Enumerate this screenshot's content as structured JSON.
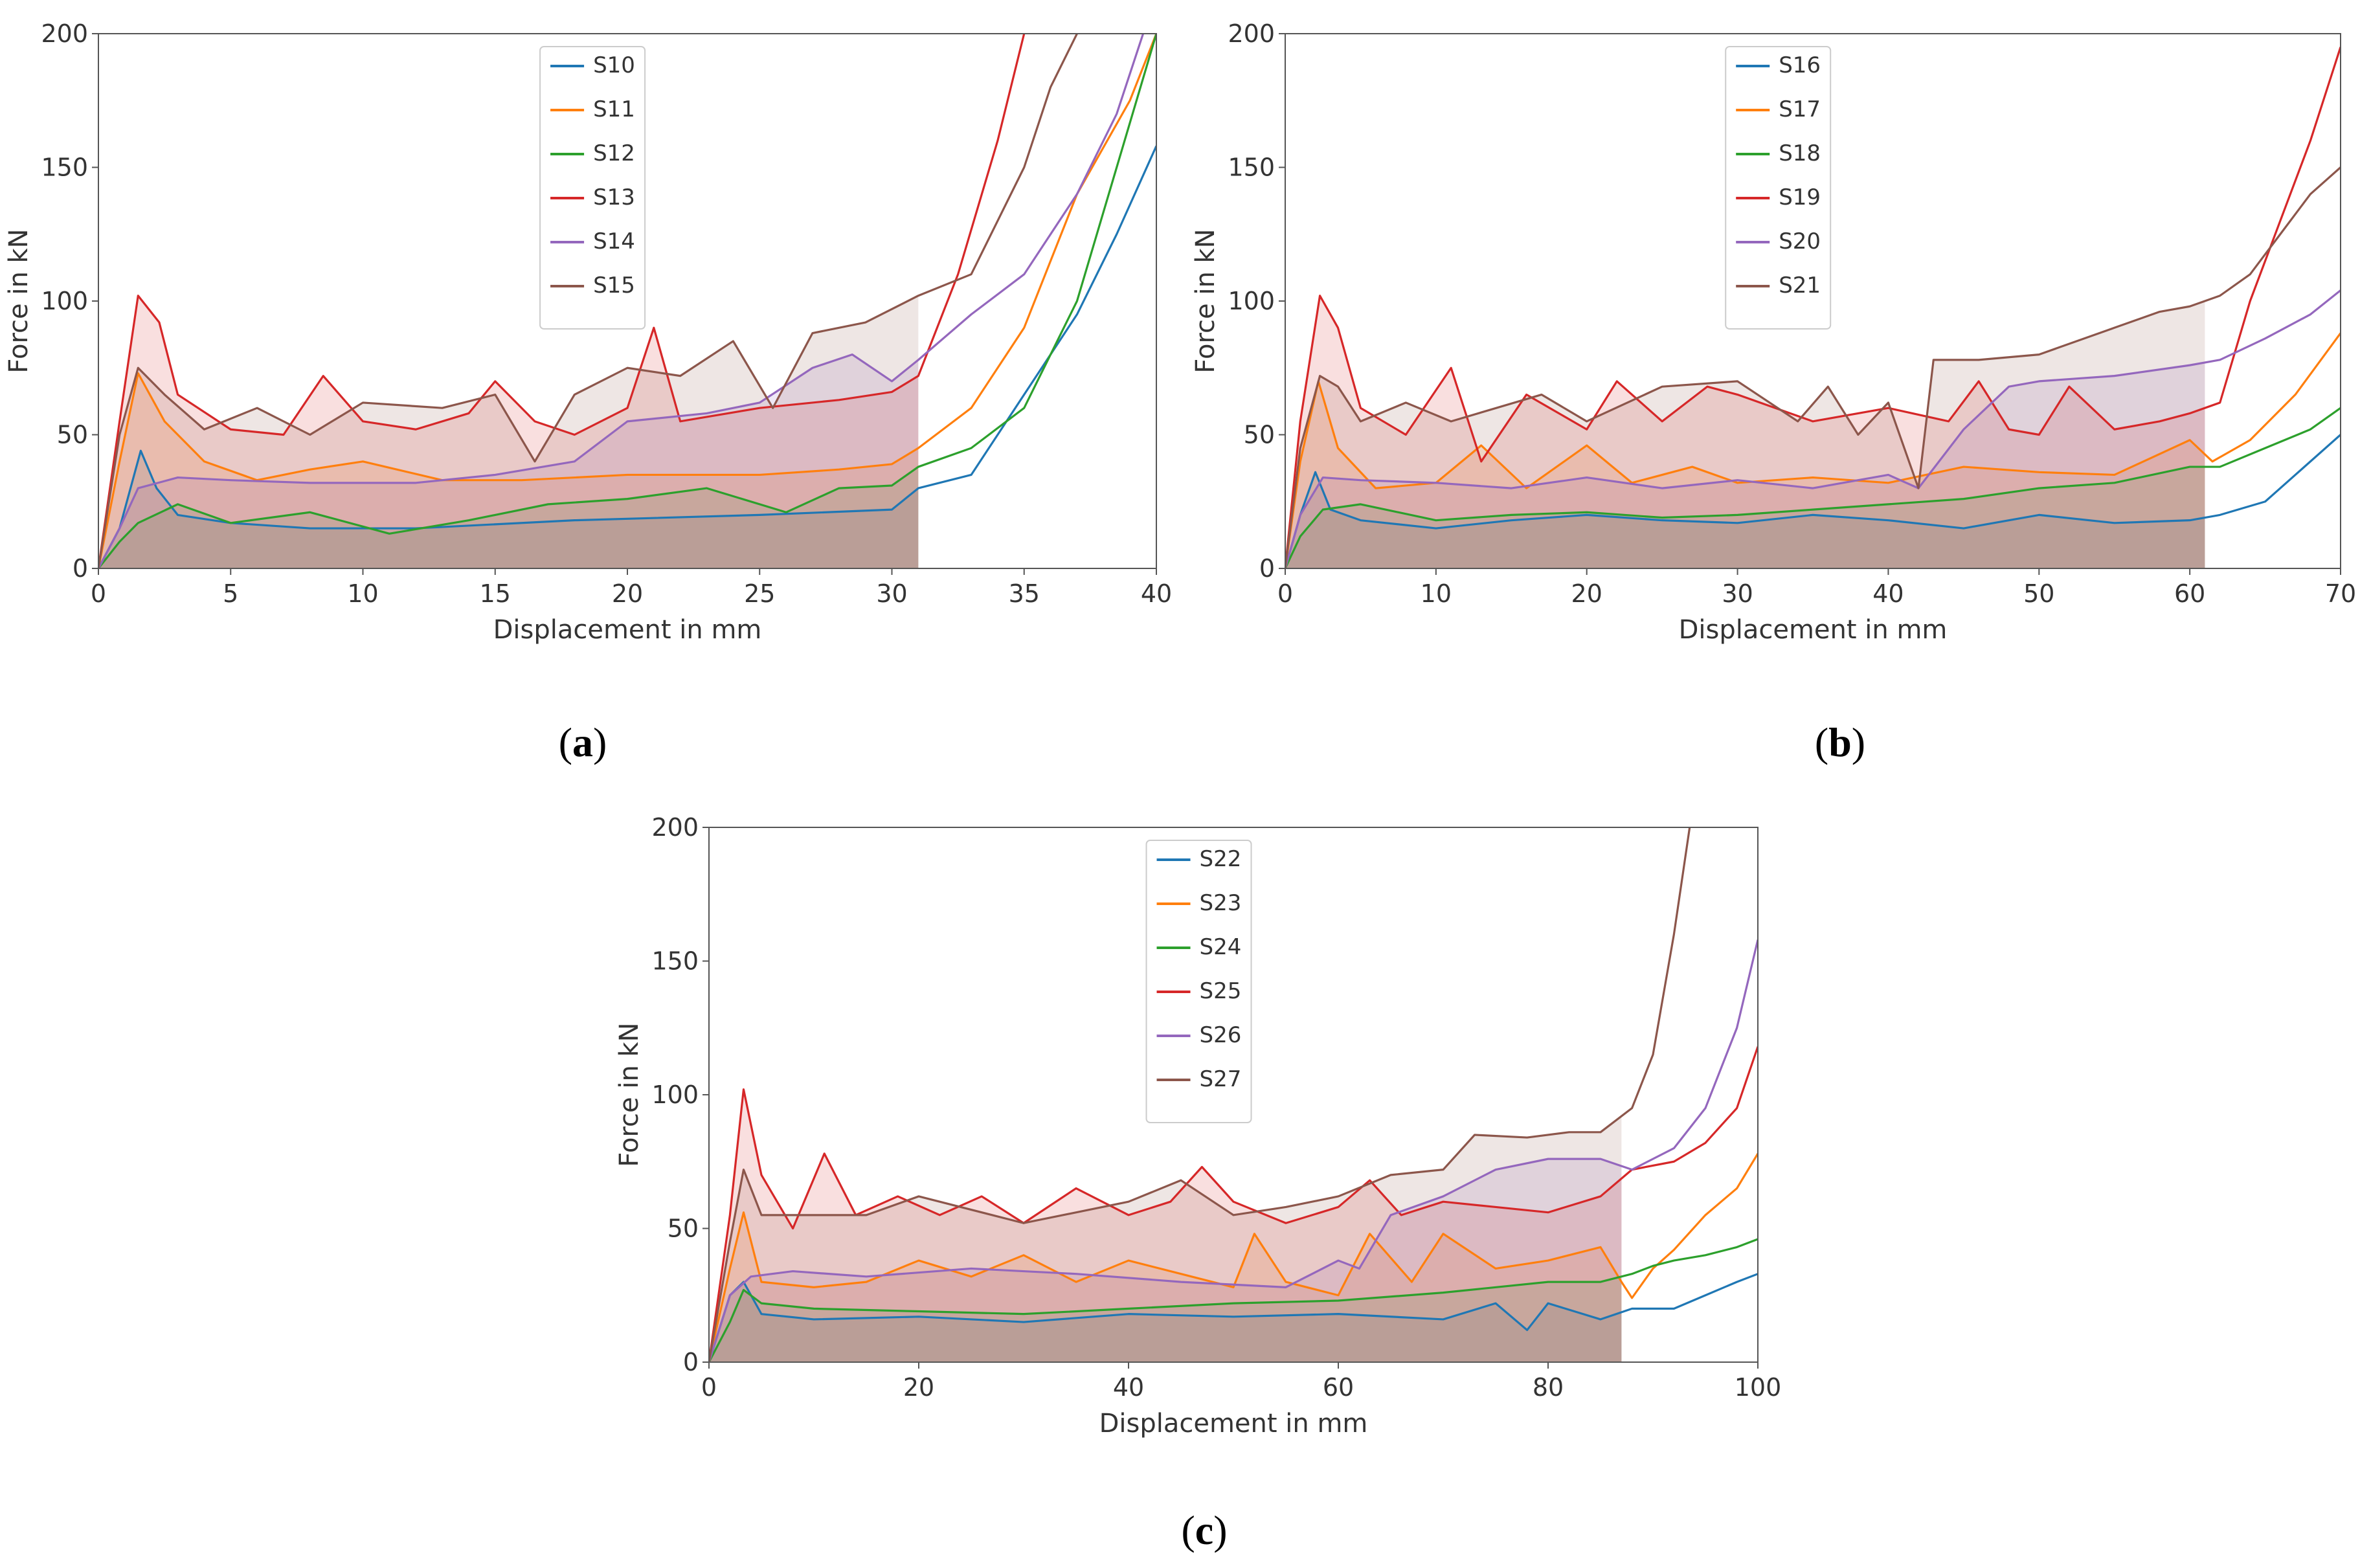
{
  "chart_data": [
    {
      "id": "a",
      "caption": "a",
      "type": "line",
      "xlabel": "Displacement in mm",
      "ylabel": "Force in kN",
      "xlim": [
        0,
        40
      ],
      "ylim": [
        0,
        200
      ],
      "xticks": [
        0,
        5,
        10,
        15,
        20,
        25,
        30,
        35,
        40
      ],
      "yticks": [
        0,
        50,
        100,
        150,
        200
      ],
      "shade_end": 31,
      "legend_position": "top-center",
      "series": [
        {
          "name": "S10",
          "color": "#1f77b4",
          "x": [
            0,
            0.8,
            1.6,
            2.2,
            3,
            5,
            8,
            12,
            18,
            25,
            30,
            31,
            33,
            35,
            37,
            38.5,
            40
          ],
          "y": [
            0,
            15,
            44,
            30,
            20,
            17,
            15,
            15,
            18,
            20,
            22,
            30,
            35,
            65,
            95,
            125,
            158
          ]
        },
        {
          "name": "S11",
          "color": "#ff7f0e",
          "x": [
            0,
            0.8,
            1.5,
            2.5,
            4,
            6,
            8,
            10,
            13,
            16,
            20,
            25,
            28,
            30,
            31,
            33,
            35,
            37,
            39,
            40
          ],
          "y": [
            0,
            40,
            73,
            55,
            40,
            33,
            37,
            40,
            33,
            33,
            35,
            35,
            37,
            39,
            45,
            60,
            90,
            140,
            175,
            200
          ]
        },
        {
          "name": "S12",
          "color": "#2ca02c",
          "x": [
            0,
            0.8,
            1.5,
            3,
            5,
            8,
            11,
            14,
            17,
            20,
            23,
            26,
            28,
            30,
            31,
            33,
            35,
            37,
            38.5,
            40
          ],
          "y": [
            0,
            10,
            17,
            24,
            17,
            21,
            13,
            18,
            24,
            26,
            30,
            21,
            30,
            31,
            38,
            45,
            60,
            100,
            150,
            200
          ]
        },
        {
          "name": "S13",
          "color": "#d62728",
          "x": [
            0,
            0.8,
            1.5,
            2.3,
            3,
            5,
            7,
            8.5,
            10,
            12,
            14,
            15,
            16.5,
            18,
            20,
            21,
            22,
            25,
            28,
            30,
            31,
            32.5,
            34,
            35
          ],
          "y": [
            0,
            55,
            102,
            92,
            65,
            52,
            50,
            72,
            55,
            52,
            58,
            70,
            55,
            50,
            60,
            90,
            55,
            60,
            63,
            66,
            72,
            110,
            160,
            200
          ]
        },
        {
          "name": "S14",
          "color": "#9467bd",
          "x": [
            0,
            0.8,
            1.5,
            3,
            5,
            8,
            12,
            15,
            18,
            20,
            23,
            25,
            27,
            28.5,
            30,
            31,
            33,
            35,
            37,
            38.5,
            39.5
          ],
          "y": [
            0,
            15,
            30,
            34,
            33,
            32,
            32,
            35,
            40,
            55,
            58,
            62,
            75,
            80,
            70,
            78,
            95,
            110,
            140,
            170,
            200
          ]
        },
        {
          "name": "S15",
          "color": "#8c564b",
          "x": [
            0,
            0.8,
            1.5,
            2.5,
            4,
            6,
            8,
            10,
            13,
            15,
            16.5,
            18,
            20,
            22,
            24,
            25.5,
            27,
            29,
            31,
            33,
            34,
            35,
            36,
            37
          ],
          "y": [
            0,
            50,
            75,
            65,
            52,
            60,
            50,
            62,
            60,
            65,
            40,
            65,
            75,
            72,
            85,
            60,
            88,
            92,
            102,
            110,
            130,
            150,
            180,
            200
          ]
        }
      ]
    },
    {
      "id": "b",
      "caption": "b",
      "type": "line",
      "xlabel": "Displacement in mm",
      "ylabel": "Force in kN",
      "xlim": [
        0,
        70
      ],
      "ylim": [
        0,
        200
      ],
      "xticks": [
        0,
        10,
        20,
        30,
        40,
        50,
        60,
        70
      ],
      "yticks": [
        0,
        50,
        100,
        150,
        200
      ],
      "shade_end": 61,
      "legend_position": "top-center",
      "series": [
        {
          "name": "S16",
          "color": "#1f77b4",
          "x": [
            0,
            1,
            2,
            3,
            5,
            10,
            15,
            20,
            25,
            30,
            35,
            40,
            45,
            50,
            55,
            60,
            62,
            65,
            67,
            70
          ],
          "y": [
            0,
            20,
            36,
            22,
            18,
            15,
            18,
            20,
            18,
            17,
            20,
            18,
            15,
            20,
            17,
            18,
            20,
            25,
            35,
            50
          ]
        },
        {
          "name": "S17",
          "color": "#ff7f0e",
          "x": [
            0,
            1,
            2.2,
            3.5,
            6,
            10,
            13,
            16,
            20,
            23,
            27,
            30,
            35,
            40,
            45,
            50,
            55,
            60,
            61.5,
            64,
            67,
            70
          ],
          "y": [
            0,
            40,
            70,
            45,
            30,
            32,
            46,
            30,
            46,
            32,
            38,
            32,
            34,
            32,
            38,
            36,
            35,
            48,
            40,
            48,
            65,
            88
          ]
        },
        {
          "name": "S18",
          "color": "#2ca02c",
          "x": [
            0,
            1,
            2.5,
            5,
            10,
            15,
            20,
            25,
            30,
            35,
            40,
            45,
            50,
            55,
            60,
            62,
            65,
            68,
            70
          ],
          "y": [
            0,
            12,
            22,
            24,
            18,
            20,
            21,
            19,
            20,
            22,
            24,
            26,
            30,
            32,
            38,
            38,
            45,
            52,
            60
          ]
        },
        {
          "name": "S19",
          "color": "#d62728",
          "x": [
            0,
            1,
            2.3,
            3.5,
            5,
            8,
            11,
            13,
            16,
            20,
            22,
            25,
            28,
            30,
            35,
            40,
            44,
            46,
            48,
            50,
            52,
            55,
            58,
            60,
            62,
            64,
            66,
            68,
            70
          ],
          "y": [
            0,
            55,
            102,
            90,
            60,
            50,
            75,
            40,
            65,
            52,
            70,
            55,
            68,
            65,
            55,
            60,
            55,
            70,
            52,
            50,
            68,
            52,
            55,
            58,
            62,
            100,
            130,
            160,
            195
          ]
        },
        {
          "name": "S20",
          "color": "#9467bd",
          "x": [
            0,
            1,
            2.5,
            5,
            10,
            15,
            20,
            25,
            30,
            35,
            40,
            42,
            45,
            48,
            50,
            55,
            60,
            62,
            65,
            68,
            70
          ],
          "y": [
            0,
            20,
            34,
            33,
            32,
            30,
            34,
            30,
            33,
            30,
            35,
            30,
            52,
            68,
            70,
            72,
            76,
            78,
            86,
            95,
            104
          ]
        },
        {
          "name": "S21",
          "color": "#8c564b",
          "x": [
            0,
            1,
            2.3,
            3.5,
            5,
            8,
            11,
            14,
            17,
            20,
            25,
            30,
            34,
            36,
            38,
            40,
            42,
            43,
            46,
            50,
            55,
            58,
            60,
            62,
            64,
            66,
            68,
            70
          ],
          "y": [
            0,
            45,
            72,
            68,
            55,
            62,
            55,
            60,
            65,
            55,
            68,
            70,
            55,
            68,
            50,
            62,
            30,
            78,
            78,
            80,
            90,
            96,
            98,
            102,
            110,
            125,
            140,
            150
          ]
        }
      ]
    },
    {
      "id": "c",
      "caption": "c",
      "type": "line",
      "xlabel": "Displacement in mm",
      "ylabel": "Force in kN",
      "xlim": [
        0,
        100
      ],
      "ylim": [
        0,
        200
      ],
      "xticks": [
        0,
        20,
        40,
        60,
        80,
        100
      ],
      "yticks": [
        0,
        50,
        100,
        150,
        200
      ],
      "shade_end": 87,
      "legend_position": "top-center",
      "series": [
        {
          "name": "S22",
          "color": "#1f77b4",
          "x": [
            0,
            2,
            3.3,
            5,
            10,
            20,
            30,
            40,
            50,
            60,
            70,
            75,
            78,
            80,
            85,
            88,
            92,
            95,
            98,
            100
          ],
          "y": [
            0,
            25,
            30,
            18,
            16,
            17,
            15,
            18,
            17,
            18,
            16,
            22,
            12,
            22,
            16,
            20,
            20,
            25,
            30,
            33
          ]
        },
        {
          "name": "S23",
          "color": "#ff7f0e",
          "x": [
            0,
            2,
            3.3,
            5,
            10,
            15,
            20,
            25,
            30,
            35,
            40,
            45,
            50,
            52,
            55,
            60,
            63,
            67,
            70,
            75,
            80,
            85,
            87,
            88,
            90,
            92,
            95,
            98,
            100
          ],
          "y": [
            0,
            35,
            56,
            30,
            28,
            30,
            38,
            32,
            40,
            30,
            38,
            33,
            28,
            48,
            30,
            25,
            48,
            30,
            48,
            35,
            38,
            43,
            30,
            24,
            35,
            42,
            55,
            65,
            78
          ]
        },
        {
          "name": "S24",
          "color": "#2ca02c",
          "x": [
            0,
            2,
            3.3,
            5,
            10,
            20,
            30,
            40,
            50,
            60,
            70,
            80,
            85,
            88,
            90,
            92,
            95,
            98,
            100
          ],
          "y": [
            0,
            15,
            27,
            22,
            20,
            19,
            18,
            20,
            22,
            23,
            26,
            30,
            30,
            33,
            36,
            38,
            40,
            43,
            46
          ]
        },
        {
          "name": "S25",
          "color": "#d62728",
          "x": [
            0,
            2,
            3.3,
            5,
            8,
            11,
            14,
            18,
            22,
            26,
            30,
            35,
            40,
            44,
            47,
            50,
            55,
            60,
            63,
            66,
            70,
            75,
            80,
            85,
            88,
            92,
            95,
            98,
            100
          ],
          "y": [
            0,
            55,
            102,
            70,
            50,
            78,
            55,
            62,
            55,
            62,
            52,
            65,
            55,
            60,
            73,
            60,
            52,
            58,
            68,
            55,
            60,
            58,
            56,
            62,
            72,
            75,
            82,
            95,
            118
          ]
        },
        {
          "name": "S26",
          "color": "#9467bd",
          "x": [
            0,
            2,
            4,
            8,
            15,
            25,
            35,
            45,
            55,
            60,
            62,
            65,
            70,
            75,
            80,
            85,
            88,
            92,
            95,
            98,
            100
          ],
          "y": [
            0,
            25,
            32,
            34,
            32,
            35,
            33,
            30,
            28,
            38,
            35,
            55,
            62,
            72,
            76,
            76,
            72,
            80,
            95,
            125,
            158
          ]
        },
        {
          "name": "S27",
          "color": "#8c564b",
          "x": [
            0,
            2,
            3.3,
            5,
            10,
            15,
            20,
            30,
            40,
            45,
            50,
            55,
            60,
            65,
            70,
            73,
            78,
            82,
            85,
            88,
            90,
            92,
            93.5
          ],
          "y": [
            0,
            45,
            72,
            55,
            55,
            55,
            62,
            52,
            60,
            68,
            55,
            58,
            62,
            70,
            72,
            85,
            84,
            86,
            86,
            95,
            115,
            160,
            200
          ]
        }
      ]
    }
  ]
}
